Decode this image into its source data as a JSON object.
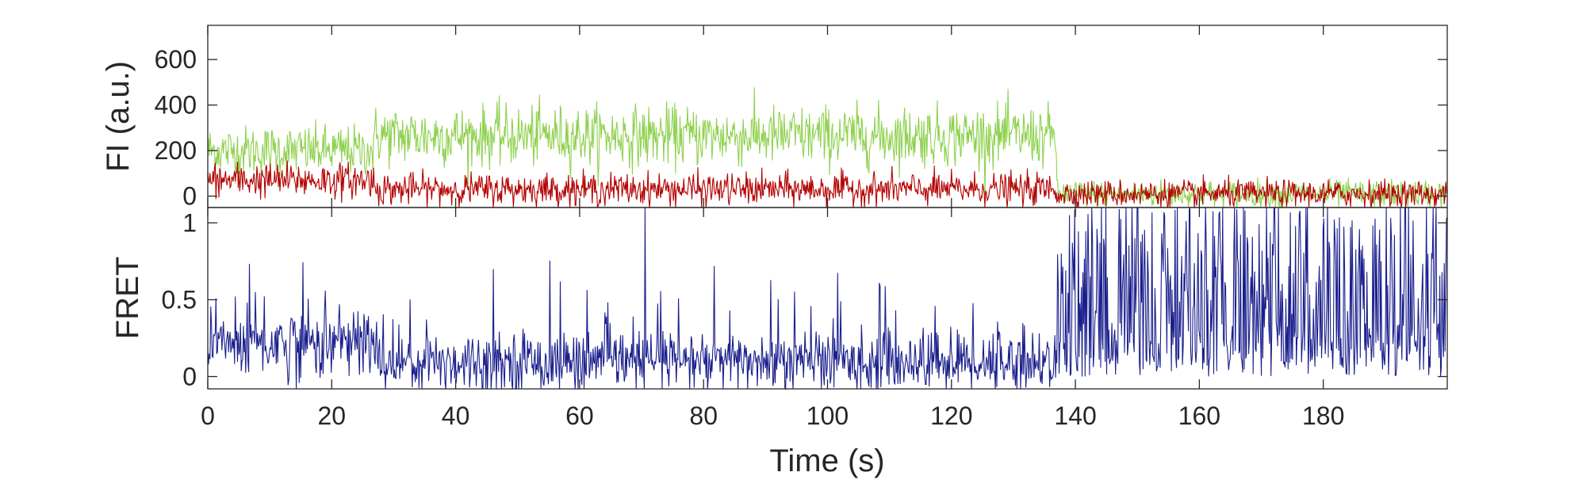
{
  "chart_data": [
    {
      "type": "line",
      "panel": "top",
      "ylabel": "FI (a.u.)",
      "xlabel": "",
      "xlim": [
        0,
        200
      ],
      "ylim": [
        -50,
        750
      ],
      "yticks": [
        0,
        200,
        400,
        600
      ],
      "ytick_labels": [
        "0",
        "200",
        "400",
        "600"
      ],
      "grid": false,
      "legend": "none",
      "series": [
        {
          "color": "#8fd14f",
          "segments": [
            {
              "t": [
                0,
                27
              ],
              "mean": 200,
              "noise": 55
            },
            {
              "t": [
                27,
                137
              ],
              "mean": 265,
              "noise": 65
            },
            {
              "t": [
                137,
                200
              ],
              "mean": 10,
              "noise": 30
            }
          ]
        },
        {
          "color": "#b30000",
          "segments": [
            {
              "t": [
                0,
                27
              ],
              "mean": 70,
              "noise": 38
            },
            {
              "t": [
                27,
                137
              ],
              "mean": 30,
              "noise": 35
            },
            {
              "t": [
                137,
                200
              ],
              "mean": 10,
              "noise": 30
            }
          ]
        }
      ]
    },
    {
      "type": "line",
      "panel": "bottom",
      "ylabel": "FRET",
      "xlabel": "Time (s)",
      "xlim": [
        0,
        200
      ],
      "ylim": [
        -0.08,
        1.1
      ],
      "yticks": [
        0,
        0.5,
        1
      ],
      "ytick_labels": [
        "0",
        "0.5",
        "1"
      ],
      "xticks": [
        0,
        20,
        40,
        60,
        80,
        100,
        120,
        140,
        160,
        180
      ],
      "xtick_labels": [
        "0",
        "20",
        "40",
        "60",
        "80",
        "100",
        "120",
        "140",
        "160",
        "180"
      ],
      "grid": false,
      "legend": "none",
      "series": [
        {
          "color": "#1a1f8c",
          "segments": [
            {
              "t": [
                0,
                27
              ],
              "mean": 0.22,
              "noise": 0.12
            },
            {
              "t": [
                27,
                137
              ],
              "mean": 0.1,
              "noise": 0.1
            },
            {
              "t": [
                137,
                200
              ],
              "mean": 0.5,
              "noise": 0.5
            }
          ],
          "spikes": [
            {
              "t": 70.5,
              "value": 1.1
            }
          ]
        }
      ]
    }
  ]
}
